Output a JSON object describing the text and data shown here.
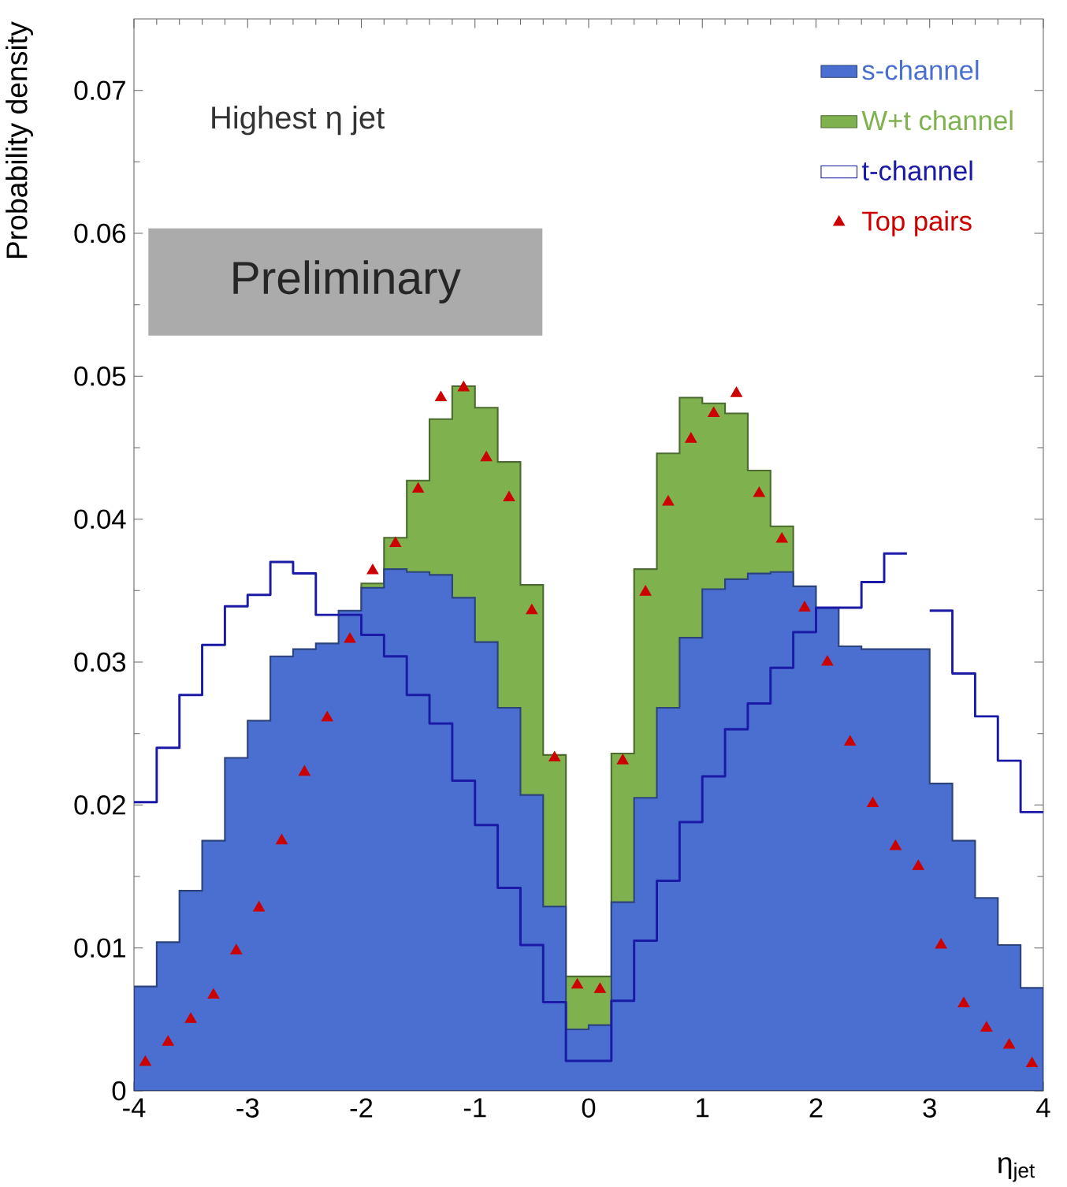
{
  "chart_data": {
    "type": "histogram",
    "xlabel": "η$_{jet}$",
    "ylabel": "Probability density",
    "annotations": [
      "Highest η jet",
      "Preliminary"
    ],
    "bins": [
      -4,
      -3.8,
      -3.6,
      -3.4,
      -3.2,
      -3,
      -2.8,
      -2.6,
      -2.4,
      -2.2,
      -2,
      -1.8,
      -1.6,
      -1.4,
      -1.2,
      -1,
      -0.8,
      -0.6,
      -0.4,
      -0.2,
      0,
      0.2,
      0.4,
      0.6,
      0.8,
      1,
      1.2,
      1.4,
      1.6,
      1.8,
      2,
      2.2,
      2.4,
      2.6,
      2.8,
      3,
      3.2,
      3.4,
      3.6,
      3.8,
      4
    ],
    "xlim": [
      -4,
      4
    ],
    "ylim": [
      0,
      0.075
    ],
    "xticks": [
      -4,
      -3,
      -2,
      -1,
      0,
      1,
      2,
      3,
      4
    ],
    "yticks": [
      0,
      0.01,
      0.02,
      0.03,
      0.04,
      0.05,
      0.06,
      0.07
    ],
    "legend": "top right",
    "series": [
      {
        "name": "s-channel",
        "color": "#4a6fd0",
        "values": [
          0.0073,
          0.0104,
          0.014,
          0.0175,
          0.0233,
          0.0259,
          0.0304,
          0.0309,
          0.0313,
          0.0336,
          0.0352,
          0.0365,
          0.0363,
          0.0361,
          0.0345,
          0.0314,
          0.0268,
          0.0207,
          0.0129,
          0.0043,
          0.0046,
          0.0132,
          0.0205,
          0.0268,
          0.0317,
          0.0351,
          0.0358,
          0.0362,
          0.0363,
          0.0353,
          0.0338,
          0.0311,
          0.0309,
          0.0309,
          0.0309,
          0.0215,
          0.0175,
          0.0135,
          0.0102,
          0.0072
        ]
      },
      {
        "name": "W+t channel",
        "color": "#7fb24f",
        "bins": [
          -2,
          -1.8,
          -1.6,
          -1.4,
          -1.2,
          -1,
          -0.8,
          -0.6,
          -0.4,
          -0.2,
          0,
          0.2,
          0.4,
          0.6,
          0.8,
          1,
          1.2,
          1.4,
          1.6,
          1.8
        ],
        "values": [
          0.0355,
          0.0387,
          0.0427,
          0.047,
          0.0493,
          0.0478,
          0.044,
          0.0354,
          0.0235,
          0.008,
          0.008,
          0.0236,
          0.0365,
          0.0446,
          0.0485,
          0.0481,
          0.0474,
          0.0434,
          0.0395
        ]
      },
      {
        "name": "t-channel",
        "type": "step",
        "color": "#1a1aa6",
        "x": [
          -4,
          -3.8,
          -3.6,
          -3.4,
          -3.2,
          -3,
          -2.8,
          -2.6,
          -2.4,
          -2.2,
          -2,
          -1.8,
          -1.6,
          -1.4,
          -1.2,
          -1,
          -0.8,
          -0.6,
          -0.4,
          -0.2,
          0,
          0.2,
          0.4,
          0.6,
          0.8,
          1,
          1.2,
          1.4,
          1.6,
          1.8,
          2,
          2.2,
          2.4,
          2.6,
          2.8,
          3,
          3.2,
          3.4,
          3.6,
          3.8,
          4
        ],
        "values": [
          0.0202,
          0.024,
          0.0277,
          0.0312,
          0.0339,
          0.0347,
          0.037,
          0.0362,
          0.0333,
          0.0333,
          0.0319,
          0.0304,
          0.0277,
          0.0257,
          0.0217,
          0.0186,
          0.0142,
          0.0102,
          0.0062,
          0.0021,
          0.0021,
          0.0063,
          0.0105,
          0.0147,
          0.0188,
          0.022,
          0.0253,
          0.0271,
          0.0296,
          0.0321,
          0.0338,
          0.0338,
          0.0356,
          0.0376,
          null,
          0.0336,
          0.0292,
          0.0262,
          0.0231,
          0.0195,
          0.0195
        ]
      },
      {
        "name": "Top pairs",
        "type": "scatter",
        "color": "#cc0000",
        "marker": "triangle",
        "x": [
          -3.9,
          -3.7,
          -3.5,
          -3.3,
          -3.1,
          -2.9,
          -2.7,
          -2.5,
          -2.3,
          -2.1,
          -1.9,
          -1.7,
          -1.5,
          -1.3,
          -1.1,
          -0.9,
          -0.7,
          -0.5,
          -0.3,
          -0.1,
          0.1,
          0.3,
          0.5,
          0.7,
          0.9,
          1.1,
          1.3,
          1.5,
          1.7,
          1.9,
          2.1,
          2.3,
          2.5,
          2.7,
          2.9,
          3.1,
          3.3,
          3.5,
          3.7,
          3.9
        ],
        "values": [
          0.002,
          0.0034,
          0.005,
          0.0067,
          0.0098,
          0.0128,
          0.0175,
          0.0223,
          0.0261,
          0.0316,
          0.0364,
          0.0383,
          0.0421,
          0.0485,
          0.0492,
          0.0443,
          0.0415,
          0.0336,
          0.0233,
          0.0074,
          0.0071,
          0.0231,
          0.0349,
          0.0412,
          0.0456,
          0.0474,
          0.0488,
          0.0418,
          0.0386,
          0.0338,
          0.03,
          0.0244,
          0.0201,
          0.0171,
          0.0157,
          0.0102,
          0.0061,
          0.0044,
          0.0032,
          0.0019
        ]
      }
    ]
  }
}
